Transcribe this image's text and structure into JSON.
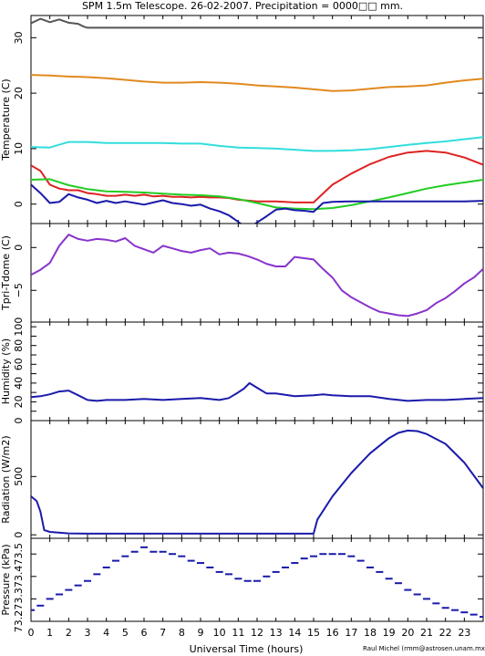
{
  "title": "SPM 1.5m Telescope. 26-02-2007. Precipitation = 0000□□ mm.",
  "credit": "Raul Michel (rmm@astrosen.unam.mx)",
  "xlabel": "Universal Time (hours)",
  "xlim": [
    0,
    24
  ],
  "xticks": [
    "0",
    "1",
    "2",
    "3",
    "4",
    "5",
    "6",
    "7",
    "8",
    "9",
    "10",
    "11",
    "12",
    "13",
    "14",
    "15",
    "16",
    "17",
    "18",
    "19",
    "20",
    "21",
    "22",
    "23"
  ],
  "chart_data": [
    {
      "type": "line",
      "ylabel": "Temperature (C)",
      "ylim": [
        -3.5,
        34
      ],
      "yticks": [
        0,
        10,
        20,
        30
      ],
      "ytick_labels": [
        "0",
        "10",
        "20",
        "30"
      ],
      "x": [
        0,
        1,
        2,
        3,
        4,
        5,
        6,
        7,
        8,
        9,
        10,
        11,
        12,
        13,
        14,
        15,
        16,
        17,
        18,
        19,
        20,
        21,
        22,
        23,
        24
      ],
      "series": [
        {
          "color": "#555555",
          "x": [
            0,
            0.5,
            1,
            1.5,
            2,
            2.5,
            2.8,
            3,
            24
          ],
          "values": [
            32.6,
            33.4,
            32.8,
            33.3,
            32.7,
            32.5,
            32.0,
            31.8,
            31.8
          ]
        },
        {
          "color": "#e08a1e",
          "values": [
            23.3,
            23.2,
            23.0,
            22.9,
            22.7,
            22.4,
            22.1,
            21.9,
            21.9,
            22.0,
            21.9,
            21.7,
            21.4,
            21.2,
            21.0,
            20.7,
            20.4,
            20.5,
            20.8,
            21.1,
            21.2,
            21.4,
            21.9,
            22.3,
            22.6
          ]
        },
        {
          "color": "#33dddd",
          "values": [
            10.3,
            10.2,
            11.2,
            11.2,
            11.0,
            11.0,
            11.0,
            11.0,
            10.9,
            10.9,
            10.5,
            10.2,
            10.1,
            10.0,
            9.8,
            9.6,
            9.6,
            9.7,
            9.9,
            10.3,
            10.7,
            11.0,
            11.3,
            11.7,
            12.1
          ]
        },
        {
          "color": "#dd2222",
          "x": [
            0,
            0.5,
            1,
            1.5,
            2,
            2.5,
            3,
            3.5,
            4,
            4.5,
            5,
            5.5,
            6,
            6.5,
            7,
            7.5,
            8,
            8.5,
            9,
            9.5,
            10,
            10.5,
            11,
            12,
            13,
            14,
            15,
            16,
            17,
            18,
            19,
            20,
            21,
            22,
            23,
            24
          ],
          "values": [
            7.0,
            6.0,
            3.5,
            2.8,
            2.5,
            2.5,
            2.0,
            1.8,
            1.5,
            1.5,
            1.7,
            1.5,
            1.7,
            1.4,
            1.5,
            1.3,
            1.3,
            1.2,
            1.3,
            1.2,
            1.2,
            1.1,
            0.8,
            0.5,
            0.5,
            0.3,
            0.3,
            3.5,
            5.5,
            7.2,
            8.5,
            9.3,
            9.6,
            9.3,
            8.4,
            7.1
          ]
        },
        {
          "color": "#22cc22",
          "values": [
            4.4,
            4.5,
            3.4,
            2.7,
            2.3,
            2.2,
            2.1,
            1.9,
            1.7,
            1.6,
            1.4,
            0.9,
            0.2,
            -0.6,
            -0.8,
            -0.9,
            -0.7,
            -0.2,
            0.5,
            1.2,
            2.0,
            2.8,
            3.4,
            3.9,
            4.4
          ]
        },
        {
          "color": "#1a1aaa",
          "x": [
            0,
            0.5,
            1,
            1.5,
            2,
            2.5,
            3,
            3.5,
            4,
            4.5,
            5,
            5.5,
            6,
            6.5,
            7,
            7.5,
            8,
            8.5,
            9,
            9.5,
            10,
            10.5,
            11,
            11.5,
            12,
            12.5,
            13,
            13.5,
            14,
            14.5,
            15,
            15.5,
            16,
            17,
            18,
            19,
            20,
            21,
            22,
            23,
            24
          ],
          "values": [
            3.5,
            2.0,
            0.2,
            0.4,
            1.8,
            1.2,
            0.8,
            0.2,
            0.6,
            0.2,
            0.5,
            0.2,
            -0.1,
            0.3,
            0.7,
            0.2,
            0.0,
            -0.3,
            -0.1,
            -0.8,
            -1.3,
            -2.0,
            -3.2,
            -4.4,
            -3.3,
            -2.2,
            -1.0,
            -0.8,
            -1.1,
            -1.2,
            -1.4,
            0.2,
            0.4,
            0.5,
            0.5,
            0.5,
            0.5,
            0.5,
            0.5,
            0.5,
            0.6
          ]
        }
      ]
    },
    {
      "type": "line",
      "ylabel": "Tpri-Tdome (C)",
      "ylim": [
        -8.7,
        2.8
      ],
      "yticks": [
        0,
        -5
      ],
      "ytick_labels": [
        "0",
        "−5"
      ],
      "series": [
        {
          "color": "#8833cc",
          "x": [
            0,
            0.5,
            1,
            1.5,
            2,
            2.5,
            3,
            3.5,
            4,
            4.5,
            5,
            5.5,
            6,
            6.5,
            7,
            7.5,
            8,
            8.5,
            9,
            9.5,
            10,
            10.5,
            11,
            11.5,
            12,
            12.5,
            13,
            13.5,
            14,
            15,
            15.5,
            16,
            16.5,
            17,
            17.5,
            18,
            18.5,
            19,
            19.5,
            20,
            20.5,
            21,
            21.5,
            22,
            22.5,
            23,
            23.5,
            24
          ],
          "values": [
            -3.2,
            -2.6,
            -1.8,
            0.2,
            1.5,
            1.0,
            0.8,
            1.0,
            0.9,
            0.7,
            1.1,
            0.2,
            -0.2,
            -0.6,
            0.2,
            -0.1,
            -0.4,
            -0.6,
            -0.3,
            -0.1,
            -0.8,
            -0.6,
            -0.7,
            -1.0,
            -1.4,
            -1.9,
            -2.2,
            -2.2,
            -1.1,
            -1.4,
            -2.5,
            -3.5,
            -5.0,
            -5.8,
            -6.4,
            -7.0,
            -7.5,
            -7.7,
            -7.9,
            -8.0,
            -7.7,
            -7.3,
            -6.5,
            -5.9,
            -5.1,
            -4.2,
            -3.5,
            -2.5
          ]
        }
      ]
    },
    {
      "type": "line",
      "ylabel": "Humidity (%)",
      "ylim": [
        0,
        105
      ],
      "yticks": [
        0,
        10,
        20,
        30,
        40,
        50,
        60,
        70,
        80,
        90,
        100
      ],
      "ytick_labels": [
        "0",
        "",
        "20",
        "",
        "40",
        "",
        "60",
        "",
        "80",
        "",
        "100"
      ],
      "series": [
        {
          "color": "#1a1aaa",
          "x": [
            0,
            0.5,
            1,
            1.5,
            2,
            2.5,
            3,
            3.5,
            4,
            5,
            6,
            7,
            8,
            9,
            10,
            10.5,
            11,
            11.3,
            11.6,
            12,
            12.5,
            13,
            14,
            15,
            15.5,
            16,
            17,
            18,
            19,
            20,
            21,
            22,
            23,
            24
          ],
          "values": [
            25,
            26,
            28,
            31,
            32,
            27,
            22,
            21,
            22,
            22,
            23,
            22,
            23,
            24,
            22,
            24,
            30,
            34,
            40,
            35,
            29,
            29,
            26,
            27,
            28,
            27,
            26,
            26,
            23,
            21,
            22,
            22,
            23,
            24
          ]
        }
      ]
    },
    {
      "type": "line",
      "ylabel": "Radiation (W/m2)",
      "ylim": [
        -30,
        980
      ],
      "yticks": [
        0,
        500
      ],
      "ytick_labels": [
        "0",
        "500"
      ],
      "series": [
        {
          "color": "#1a1aaa",
          "x": [
            0,
            0.3,
            0.5,
            0.7,
            1,
            2,
            3,
            4,
            5,
            6,
            7,
            8,
            9,
            10,
            11,
            12,
            13,
            14,
            15,
            15.2,
            16,
            17,
            18,
            19,
            19.5,
            20,
            20.5,
            21,
            22,
            23,
            24
          ],
          "values": [
            330,
            290,
            200,
            40,
            25,
            12,
            10,
            10,
            10,
            10,
            10,
            10,
            10,
            10,
            10,
            10,
            10,
            10,
            10,
            130,
            330,
            530,
            700,
            830,
            875,
            895,
            890,
            865,
            780,
            620,
            400
          ]
        }
      ]
    },
    {
      "type": "scatter",
      "ylabel": "Pressure (kPa)",
      "ylim": [
        73.2,
        73.57
      ],
      "yticks": [
        73.2,
        73.3,
        73.4,
        73.5
      ],
      "ytick_labels": [
        "73.2",
        "73.3",
        "73.4",
        "73.5"
      ],
      "series": [
        {
          "color": "#1a1aaa",
          "x": [
            0,
            0.5,
            1,
            1.5,
            2,
            2.5,
            3,
            3.5,
            4,
            4.5,
            5,
            5.5,
            6,
            6.5,
            7,
            7.5,
            8,
            8.5,
            9,
            9.5,
            10,
            10.5,
            11,
            11.5,
            12,
            12.5,
            13,
            13.5,
            14,
            14.5,
            15,
            15.5,
            16,
            16.5,
            17,
            17.5,
            18,
            18.5,
            19,
            19.5,
            20,
            20.5,
            21,
            21.5,
            22,
            22.5,
            23,
            23.5,
            24
          ],
          "values": [
            73.25,
            73.27,
            73.3,
            73.32,
            73.34,
            73.36,
            73.38,
            73.41,
            73.44,
            73.47,
            73.49,
            73.51,
            73.53,
            73.51,
            73.51,
            73.5,
            73.49,
            73.47,
            73.46,
            73.44,
            73.42,
            73.41,
            73.39,
            73.38,
            73.38,
            73.4,
            73.42,
            73.44,
            73.46,
            73.48,
            73.49,
            73.5,
            73.5,
            73.5,
            73.49,
            73.47,
            73.44,
            73.42,
            73.39,
            73.37,
            73.34,
            73.32,
            73.3,
            73.28,
            73.26,
            73.25,
            73.24,
            73.23,
            73.22
          ]
        }
      ]
    }
  ]
}
